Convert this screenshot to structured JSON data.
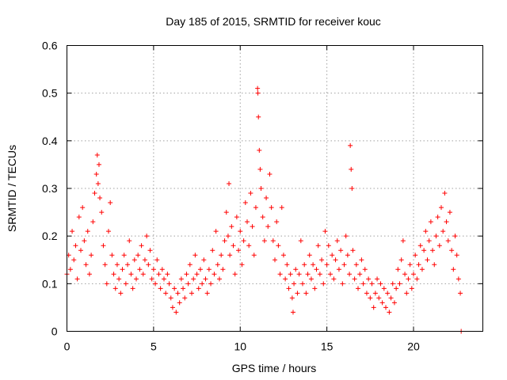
{
  "chart_data": {
    "type": "scatter",
    "title": "Day 185 of 2015, SRMTID for receiver kouc",
    "xlabel": "GPS time / hours",
    "ylabel": "SRMTID / TECUs",
    "xlim": [
      0,
      24
    ],
    "ylim": [
      0,
      0.6
    ],
    "xticks": [
      "0",
      "5",
      "10",
      "15",
      "20"
    ],
    "yticks": [
      "0",
      "0.1",
      "0.2",
      "0.3",
      "0.4",
      "0.5",
      "0.6"
    ],
    "marker": "+",
    "color": "#ff0000",
    "grid": true,
    "series": [
      {
        "name": "SRMTID",
        "points": [
          [
            0.0,
            0.12
          ],
          [
            0.1,
            0.16
          ],
          [
            0.2,
            0.13
          ],
          [
            0.3,
            0.21
          ],
          [
            0.4,
            0.15
          ],
          [
            0.5,
            0.18
          ],
          [
            0.6,
            0.11
          ],
          [
            0.7,
            0.24
          ],
          [
            0.8,
            0.17
          ],
          [
            0.9,
            0.26
          ],
          [
            1.0,
            0.19
          ],
          [
            1.1,
            0.14
          ],
          [
            1.2,
            0.21
          ],
          [
            1.3,
            0.12
          ],
          [
            1.4,
            0.16
          ],
          [
            1.5,
            0.23
          ],
          [
            1.6,
            0.29
          ],
          [
            1.7,
            0.33
          ],
          [
            1.75,
            0.37
          ],
          [
            1.8,
            0.31
          ],
          [
            1.85,
            0.35
          ],
          [
            1.9,
            0.28
          ],
          [
            2.0,
            0.25
          ],
          [
            2.1,
            0.18
          ],
          [
            2.2,
            0.14
          ],
          [
            2.3,
            0.1
          ],
          [
            2.4,
            0.21
          ],
          [
            2.5,
            0.27
          ],
          [
            2.6,
            0.16
          ],
          [
            2.7,
            0.12
          ],
          [
            2.8,
            0.09
          ],
          [
            2.9,
            0.14
          ],
          [
            3.0,
            0.11
          ],
          [
            3.1,
            0.08
          ],
          [
            3.2,
            0.13
          ],
          [
            3.3,
            0.16
          ],
          [
            3.4,
            0.1
          ],
          [
            3.5,
            0.14
          ],
          [
            3.6,
            0.19
          ],
          [
            3.7,
            0.12
          ],
          [
            3.8,
            0.09
          ],
          [
            3.9,
            0.15
          ],
          [
            4.0,
            0.11
          ],
          [
            4.1,
            0.16
          ],
          [
            4.2,
            0.13
          ],
          [
            4.3,
            0.18
          ],
          [
            4.4,
            0.12
          ],
          [
            4.5,
            0.15
          ],
          [
            4.6,
            0.2
          ],
          [
            4.7,
            0.14
          ],
          [
            4.8,
            0.17
          ],
          [
            4.9,
            0.11
          ],
          [
            5.0,
            0.13
          ],
          [
            5.1,
            0.1
          ],
          [
            5.2,
            0.15
          ],
          [
            5.3,
            0.12
          ],
          [
            5.4,
            0.09
          ],
          [
            5.5,
            0.13
          ],
          [
            5.6,
            0.11
          ],
          [
            5.7,
            0.08
          ],
          [
            5.8,
            0.12
          ],
          [
            5.9,
            0.1
          ],
          [
            6.0,
            0.07
          ],
          [
            6.1,
            0.05
          ],
          [
            6.2,
            0.09
          ],
          [
            6.3,
            0.04
          ],
          [
            6.4,
            0.08
          ],
          [
            6.5,
            0.06
          ],
          [
            6.6,
            0.11
          ],
          [
            6.7,
            0.09
          ],
          [
            6.8,
            0.07
          ],
          [
            6.9,
            0.12
          ],
          [
            7.0,
            0.1
          ],
          [
            7.1,
            0.14
          ],
          [
            7.2,
            0.08
          ],
          [
            7.3,
            0.11
          ],
          [
            7.4,
            0.16
          ],
          [
            7.5,
            0.12
          ],
          [
            7.6,
            0.09
          ],
          [
            7.7,
            0.13
          ],
          [
            7.8,
            0.1
          ],
          [
            7.9,
            0.15
          ],
          [
            8.0,
            0.11
          ],
          [
            8.1,
            0.08
          ],
          [
            8.2,
            0.13
          ],
          [
            8.3,
            0.1
          ],
          [
            8.4,
            0.17
          ],
          [
            8.5,
            0.12
          ],
          [
            8.6,
            0.21
          ],
          [
            8.7,
            0.14
          ],
          [
            8.8,
            0.11
          ],
          [
            8.9,
            0.16
          ],
          [
            9.0,
            0.13
          ],
          [
            9.1,
            0.19
          ],
          [
            9.2,
            0.25
          ],
          [
            9.3,
            0.2
          ],
          [
            9.35,
            0.31
          ],
          [
            9.4,
            0.16
          ],
          [
            9.5,
            0.22
          ],
          [
            9.6,
            0.18
          ],
          [
            9.7,
            0.12
          ],
          [
            9.8,
            0.24
          ],
          [
            9.9,
            0.17
          ],
          [
            10.0,
            0.21
          ],
          [
            10.1,
            0.14
          ],
          [
            10.2,
            0.19
          ],
          [
            10.3,
            0.27
          ],
          [
            10.4,
            0.23
          ],
          [
            10.5,
            0.18
          ],
          [
            10.6,
            0.29
          ],
          [
            10.7,
            0.22
          ],
          [
            10.8,
            0.16
          ],
          [
            10.9,
            0.26
          ],
          [
            11.0,
            0.51
          ],
          [
            11.02,
            0.5
          ],
          [
            11.05,
            0.45
          ],
          [
            11.1,
            0.38
          ],
          [
            11.15,
            0.34
          ],
          [
            11.2,
            0.3
          ],
          [
            11.3,
            0.24
          ],
          [
            11.4,
            0.19
          ],
          [
            11.5,
            0.28
          ],
          [
            11.6,
            0.22
          ],
          [
            11.7,
            0.33
          ],
          [
            11.8,
            0.26
          ],
          [
            11.9,
            0.19
          ],
          [
            12.0,
            0.15
          ],
          [
            12.1,
            0.23
          ],
          [
            12.2,
            0.18
          ],
          [
            12.3,
            0.12
          ],
          [
            12.4,
            0.26
          ],
          [
            12.5,
            0.16
          ],
          [
            12.6,
            0.11
          ],
          [
            12.7,
            0.14
          ],
          [
            12.8,
            0.09
          ],
          [
            12.9,
            0.12
          ],
          [
            13.0,
            0.07
          ],
          [
            13.05,
            0.04
          ],
          [
            13.1,
            0.1
          ],
          [
            13.2,
            0.13
          ],
          [
            13.3,
            0.08
          ],
          [
            13.4,
            0.12
          ],
          [
            13.5,
            0.19
          ],
          [
            13.6,
            0.1
          ],
          [
            13.7,
            0.14
          ],
          [
            13.8,
            0.08
          ],
          [
            13.9,
            0.12
          ],
          [
            14.0,
            0.16
          ],
          [
            14.1,
            0.11
          ],
          [
            14.2,
            0.14
          ],
          [
            14.3,
            0.09
          ],
          [
            14.4,
            0.13
          ],
          [
            14.5,
            0.18
          ],
          [
            14.6,
            0.12
          ],
          [
            14.7,
            0.15
          ],
          [
            14.8,
            0.1
          ],
          [
            14.9,
            0.21
          ],
          [
            15.0,
            0.14
          ],
          [
            15.1,
            0.18
          ],
          [
            15.2,
            0.12
          ],
          [
            15.3,
            0.16
          ],
          [
            15.4,
            0.11
          ],
          [
            15.5,
            0.15
          ],
          [
            15.6,
            0.19
          ],
          [
            15.7,
            0.13
          ],
          [
            15.8,
            0.17
          ],
          [
            15.9,
            0.1
          ],
          [
            16.0,
            0.14
          ],
          [
            16.1,
            0.2
          ],
          [
            16.2,
            0.16
          ],
          [
            16.3,
            0.12
          ],
          [
            16.35,
            0.39
          ],
          [
            16.4,
            0.34
          ],
          [
            16.45,
            0.3
          ],
          [
            16.5,
            0.17
          ],
          [
            16.6,
            0.11
          ],
          [
            16.7,
            0.14
          ],
          [
            16.8,
            0.09
          ],
          [
            16.9,
            0.12
          ],
          [
            17.0,
            0.15
          ],
          [
            17.1,
            0.1
          ],
          [
            17.2,
            0.13
          ],
          [
            17.3,
            0.08
          ],
          [
            17.4,
            0.11
          ],
          [
            17.5,
            0.07
          ],
          [
            17.6,
            0.1
          ],
          [
            17.7,
            0.05
          ],
          [
            17.8,
            0.08
          ],
          [
            17.9,
            0.11
          ],
          [
            18.0,
            0.07
          ],
          [
            18.1,
            0.1
          ],
          [
            18.2,
            0.06
          ],
          [
            18.3,
            0.09
          ],
          [
            18.4,
            0.05
          ],
          [
            18.5,
            0.08
          ],
          [
            18.6,
            0.04
          ],
          [
            18.7,
            0.07
          ],
          [
            18.8,
            0.1
          ],
          [
            18.9,
            0.06
          ],
          [
            19.0,
            0.09
          ],
          [
            19.1,
            0.13
          ],
          [
            19.2,
            0.1
          ],
          [
            19.3,
            0.15
          ],
          [
            19.4,
            0.19
          ],
          [
            19.5,
            0.12
          ],
          [
            19.6,
            0.08
          ],
          [
            19.7,
            0.11
          ],
          [
            19.8,
            0.14
          ],
          [
            19.9,
            0.09
          ],
          [
            20.0,
            0.12
          ],
          [
            20.1,
            0.16
          ],
          [
            20.2,
            0.11
          ],
          [
            20.3,
            0.14
          ],
          [
            20.4,
            0.18
          ],
          [
            20.5,
            0.13
          ],
          [
            20.6,
            0.17
          ],
          [
            20.7,
            0.21
          ],
          [
            20.8,
            0.15
          ],
          [
            20.9,
            0.19
          ],
          [
            21.0,
            0.23
          ],
          [
            21.1,
            0.17
          ],
          [
            21.2,
            0.14
          ],
          [
            21.3,
            0.2
          ],
          [
            21.4,
            0.24
          ],
          [
            21.5,
            0.18
          ],
          [
            21.6,
            0.26
          ],
          [
            21.7,
            0.21
          ],
          [
            21.8,
            0.29
          ],
          [
            21.9,
            0.23
          ],
          [
            22.0,
            0.19
          ],
          [
            22.1,
            0.25
          ],
          [
            22.2,
            0.17
          ],
          [
            22.3,
            0.13
          ],
          [
            22.4,
            0.2
          ],
          [
            22.5,
            0.16
          ],
          [
            22.6,
            0.11
          ],
          [
            22.7,
            0.08
          ],
          [
            22.75,
            0.0
          ]
        ]
      }
    ]
  }
}
